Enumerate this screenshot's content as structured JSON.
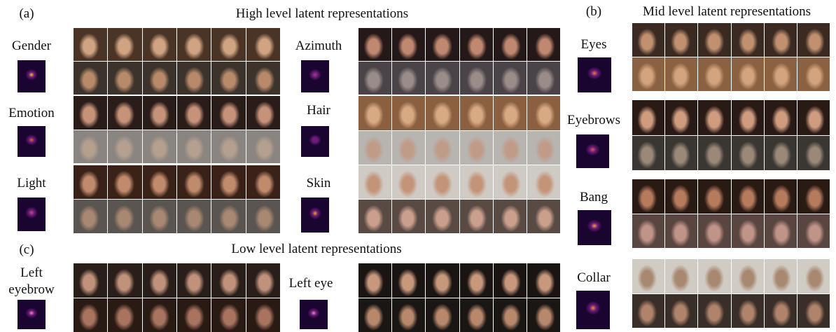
{
  "panels": [
    {
      "tag": "(a)",
      "title": "High level latent representations",
      "attributes": [
        "Gender",
        "Emotion",
        "Light",
        "Azimuth",
        "Hair",
        "Skin"
      ]
    },
    {
      "tag": "(b)",
      "title": "Mid level latent representations",
      "attributes": [
        "Eyes",
        "Eyebrows",
        "Bang",
        "Collar"
      ]
    },
    {
      "tag": "(c)",
      "title": "Low level latent representations",
      "attributes": [
        "Left eyebrow",
        "Left eye"
      ]
    }
  ]
}
